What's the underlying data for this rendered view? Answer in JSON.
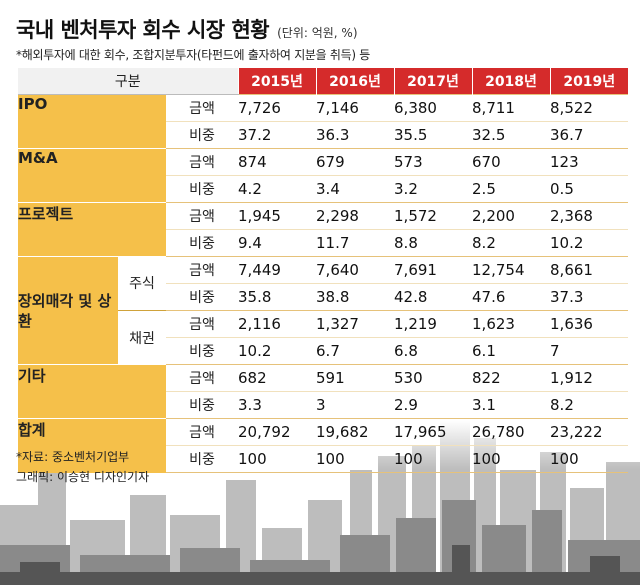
{
  "title": "국내 벤처투자 회수 시장 현황",
  "unit": "(단위: 억원, %)",
  "note": "*해외투자에 대한 회수, 조합지분투자(타펀드에 출자하여 지분을 취득) 등",
  "header": {
    "gubun": "구분",
    "years": [
      "2015년",
      "2016년",
      "2017년",
      "2018년",
      "2019년"
    ]
  },
  "labels": {
    "amount": "금액",
    "share": "비중"
  },
  "categories": [
    {
      "name": "IPO",
      "amount": [
        "7,726",
        "7,146",
        "6,380",
        "8,711",
        "8,522"
      ],
      "share": [
        "37.2",
        "36.3",
        "35.5",
        "32.5",
        "36.7"
      ]
    },
    {
      "name": "M&A",
      "amount": [
        "874",
        "679",
        "573",
        "670",
        "123"
      ],
      "share": [
        "4.2",
        "3.4",
        "3.2",
        "2.5",
        "0.5"
      ]
    },
    {
      "name": "프로젝트",
      "amount": [
        "1,945",
        "2,298",
        "1,572",
        "2,200",
        "2,368"
      ],
      "share": [
        "9.4",
        "11.7",
        "8.8",
        "8.2",
        "10.2"
      ]
    },
    {
      "name": "장외매각 및 상환",
      "subs": [
        {
          "name": "주식",
          "amount": [
            "7,449",
            "7,640",
            "7,691",
            "12,754",
            "8,661"
          ],
          "share": [
            "35.8",
            "38.8",
            "42.8",
            "47.6",
            "37.3"
          ]
        },
        {
          "name": "채권",
          "amount": [
            "2,116",
            "1,327",
            "1,219",
            "1,623",
            "1,636"
          ],
          "share": [
            "10.2",
            "6.7",
            "6.8",
            "6.1",
            "7"
          ]
        }
      ]
    },
    {
      "name": "기타",
      "amount": [
        "682",
        "591",
        "530",
        "822",
        "1,912"
      ],
      "share": [
        "3.3",
        "3",
        "2.9",
        "3.1",
        "8.2"
      ]
    },
    {
      "name": "합계",
      "amount": [
        "20,792",
        "19,682",
        "17,965",
        "26,780",
        "23,222"
      ],
      "share": [
        "100",
        "100",
        "100",
        "100",
        "100"
      ]
    }
  ],
  "source": "*자료: 중소벤처기업부",
  "graphic": "그래픽: 이승현 디자인기자"
}
